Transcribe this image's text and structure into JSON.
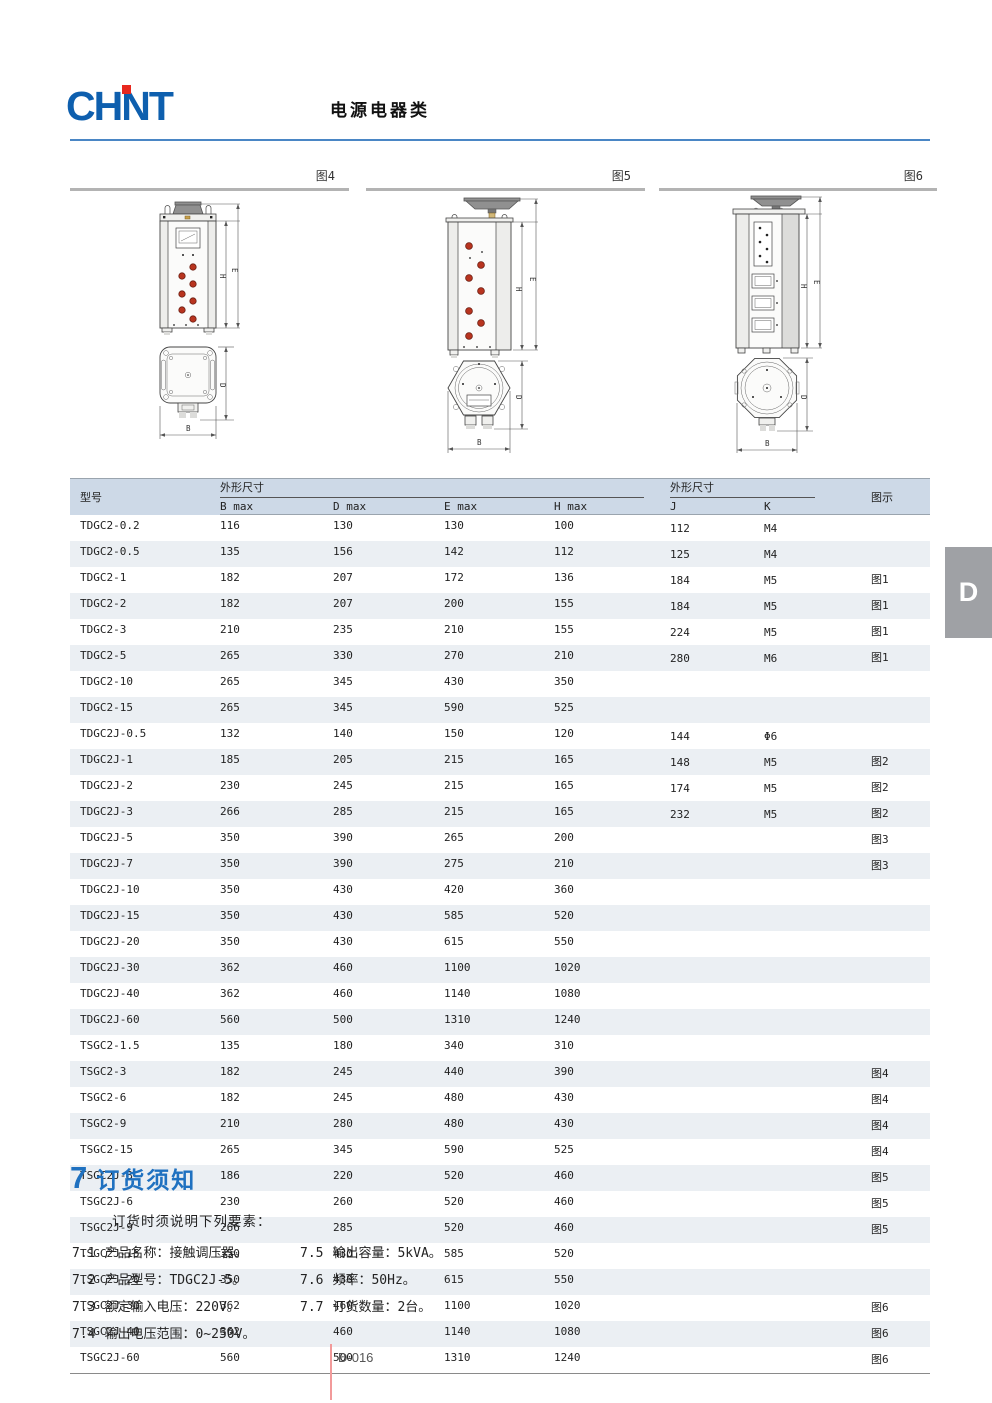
{
  "page": {
    "logo_text": "CHNT",
    "doc_title": "电源电器类",
    "page_number": "D-016",
    "side_tab": "D"
  },
  "figures": {
    "fig4_label": "图4",
    "fig5_label": "图5",
    "fig6_label": "图6",
    "dim_e": "E",
    "dim_h": "H",
    "dim_d": "D",
    "dim_b": "B"
  },
  "table": {
    "model_header": "型号",
    "dim_group1": "外形尺寸",
    "dim_group2": "外形尺寸",
    "fig_header": "图示",
    "sub_headers": [
      "B max",
      "D max",
      "E max",
      "H max",
      "J",
      "K"
    ],
    "rows": [
      [
        "TDGC2-0.2",
        "116",
        "130",
        "130",
        "100",
        "112",
        "M4",
        ""
      ],
      [
        "TDGC2-0.5",
        "135",
        "156",
        "142",
        "112",
        "125",
        "M4",
        ""
      ],
      [
        "TDGC2-1",
        "182",
        "207",
        "172",
        "136",
        "184",
        "M5",
        "图1"
      ],
      [
        "TDGC2-2",
        "182",
        "207",
        "200",
        "155",
        "184",
        "M5",
        "图1"
      ],
      [
        "TDGC2-3",
        "210",
        "235",
        "210",
        "155",
        "224",
        "M5",
        "图1"
      ],
      [
        "TDGC2-5",
        "265",
        "330",
        "270",
        "210",
        "280",
        "M6",
        "图1"
      ],
      [
        "TDGC2-10",
        "265",
        "345",
        "430",
        "350",
        "",
        "",
        ""
      ],
      [
        "TDGC2-15",
        "265",
        "345",
        "590",
        "525",
        "",
        "",
        ""
      ],
      [
        "TDGC2J-0.5",
        "132",
        "140",
        "150",
        "120",
        "144",
        "Φ6",
        ""
      ],
      [
        "TDGC2J-1",
        "185",
        "205",
        "215",
        "165",
        "148",
        "M5",
        "图2"
      ],
      [
        "TDGC2J-2",
        "230",
        "245",
        "215",
        "165",
        "174",
        "M5",
        "图2"
      ],
      [
        "TDGC2J-3",
        "266",
        "285",
        "215",
        "165",
        "232",
        "M5",
        "图2"
      ],
      [
        "TDGC2J-5",
        "350",
        "390",
        "265",
        "200",
        "",
        "",
        "图3"
      ],
      [
        "TDGC2J-7",
        "350",
        "390",
        "275",
        "210",
        "",
        "",
        "图3"
      ],
      [
        "TDGC2J-10",
        "350",
        "430",
        "420",
        "360",
        "",
        "",
        ""
      ],
      [
        "TDGC2J-15",
        "350",
        "430",
        "585",
        "520",
        "",
        "",
        ""
      ],
      [
        "TDGC2J-20",
        "350",
        "430",
        "615",
        "550",
        "",
        "",
        ""
      ],
      [
        "TDGC2J-30",
        "362",
        "460",
        "1100",
        "1020",
        "",
        "",
        ""
      ],
      [
        "TDGC2J-40",
        "362",
        "460",
        "1140",
        "1080",
        "",
        "",
        ""
      ],
      [
        "TDGC2J-60",
        "560",
        "500",
        "1310",
        "1240",
        "",
        "",
        ""
      ],
      [
        "TSGC2-1.5",
        "135",
        "180",
        "340",
        "310",
        "",
        "",
        ""
      ],
      [
        "TSGC2-3",
        "182",
        "245",
        "440",
        "390",
        "",
        "",
        "图4"
      ],
      [
        "TSGC2-6",
        "182",
        "245",
        "480",
        "430",
        "",
        "",
        "图4"
      ],
      [
        "TSGC2-9",
        "210",
        "280",
        "480",
        "430",
        "",
        "",
        "图4"
      ],
      [
        "TSGC2-15",
        "265",
        "345",
        "590",
        "525",
        "",
        "",
        "图4"
      ],
      [
        "TSGC2J-3",
        "186",
        "220",
        "520",
        "460",
        "",
        "",
        "图5"
      ],
      [
        "TSGC2J-6",
        "230",
        "260",
        "520",
        "460",
        "",
        "",
        "图5"
      ],
      [
        "TSGC2J-9",
        "266",
        "285",
        "520",
        "460",
        "",
        "",
        "图5"
      ],
      [
        "TSGC2J-15",
        "350",
        "430",
        "585",
        "520",
        "",
        "",
        ""
      ],
      [
        "TSGC2J-20",
        "350",
        "430",
        "615",
        "550",
        "",
        "",
        ""
      ],
      [
        "TSGC2J-30",
        "362",
        "460",
        "1100",
        "1020",
        "",
        "",
        "图6"
      ],
      [
        "TSGC2J-40",
        "362",
        "460",
        "1140",
        "1080",
        "",
        "",
        "图6"
      ],
      [
        "TSGC2J-60",
        "560",
        "500",
        "1310",
        "1240",
        "",
        "",
        "图6"
      ]
    ]
  },
  "ordering": {
    "number": "7",
    "title": "订货须知",
    "intro": "订货时须说明下列要素：",
    "items_left": [
      {
        "num": "7.1",
        "text": "产品名称：接触调压器。"
      },
      {
        "num": "7.2",
        "text": "产品型号：TDGC2J-5。"
      },
      {
        "num": "7.3",
        "text": "额定输入电压：220V。"
      },
      {
        "num": "7.4",
        "text": "输出电压范围：0~250V。"
      }
    ],
    "items_right": [
      {
        "num": "7.5",
        "text": "输出容量：5kVA。"
      },
      {
        "num": "7.6",
        "text": "频率：50Hz。"
      },
      {
        "num": "7.7",
        "text": "订货数量：2台。"
      }
    ]
  },
  "colors": {
    "logo_blue": "#0e5fae",
    "logo_red": "#e8281e",
    "header_rule_blue": "#4a86c5",
    "section_blue": "#1f71c0",
    "table_header_bg": "#cdd9e7",
    "row_alt_bg": "#ebeff3",
    "terminal_red": "#b8341f",
    "side_tab_gray": "#9fa1a5",
    "footer_line_pink": "#f29a9a"
  }
}
